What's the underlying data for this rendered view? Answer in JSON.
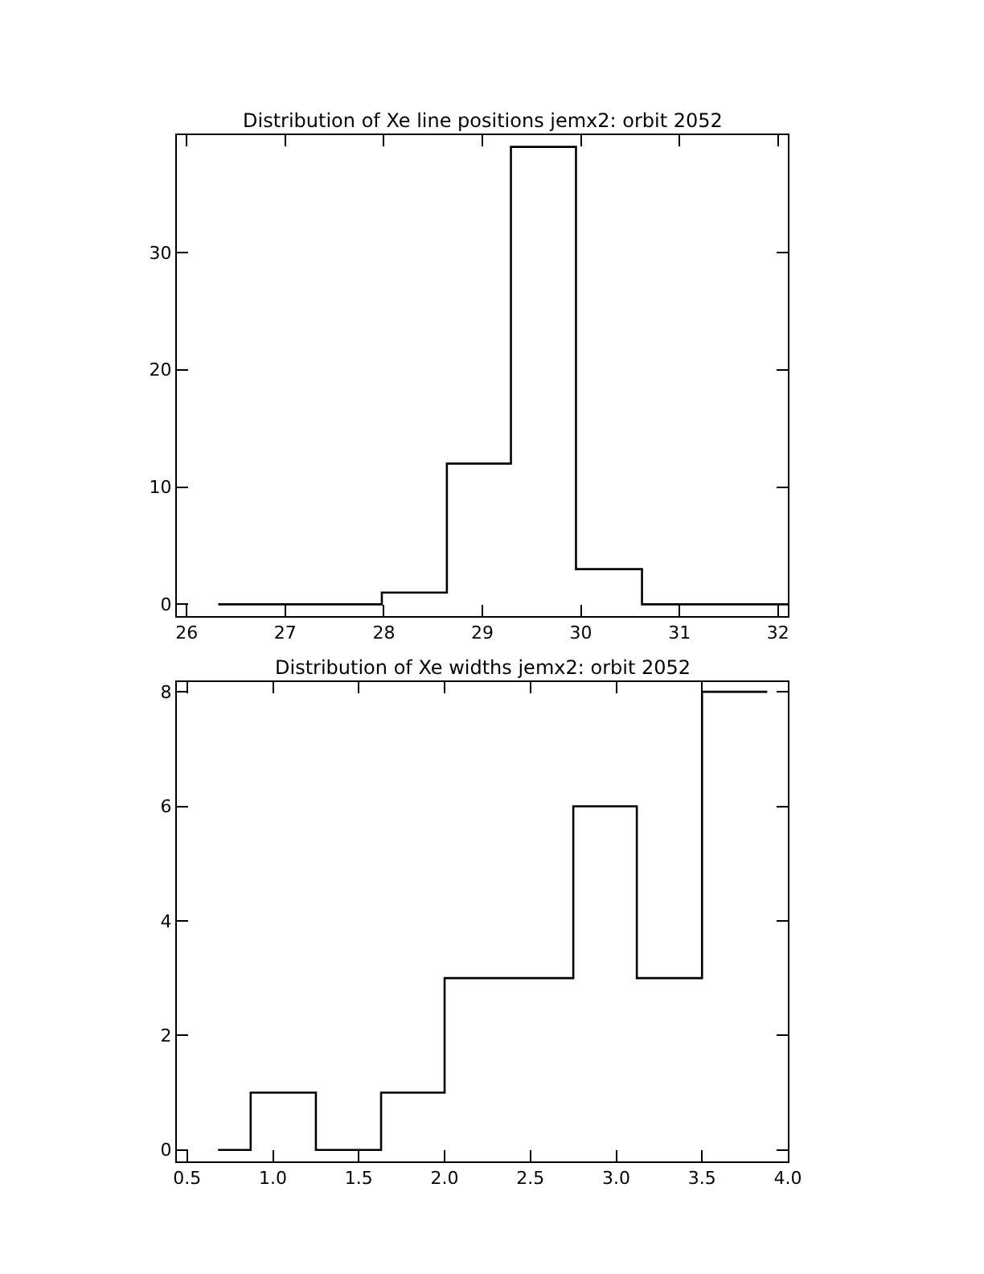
{
  "chart_data": [
    {
      "type": "histogram",
      "title": "Distribution of Xe line positions jemx2: orbit 2052",
      "bins": [
        26.32,
        27.98,
        28.64,
        29.29,
        29.95,
        30.62,
        32.1
      ],
      "values": [
        0,
        1,
        12,
        39,
        3,
        0
      ],
      "color": "#000000",
      "xlim": [
        25.9,
        32.1
      ],
      "xticks": [
        26,
        27,
        28,
        29,
        30,
        31,
        32
      ],
      "ylim": [
        -1,
        40
      ],
      "yticks": [
        0,
        10,
        20,
        30
      ]
    },
    {
      "type": "histogram",
      "title": "Distribution of Xe widths jemx2: orbit 2052",
      "bins": [
        0.68,
        0.87,
        1.25,
        1.63,
        2.0,
        2.75,
        3.12,
        3.5,
        3.88
      ],
      "values": [
        0,
        1,
        0,
        1,
        3,
        6,
        3,
        8
      ],
      "color": "#000000",
      "xlim": [
        0.44,
        4.0
      ],
      "xticks": [
        {
          "value": 0.5,
          "label": "0.5"
        },
        {
          "value": 1.0,
          "label": "1.0"
        },
        {
          "value": 1.5,
          "label": "1.5"
        },
        {
          "value": 2.0,
          "label": "2.0"
        },
        {
          "value": 2.5,
          "label": "2.5"
        },
        {
          "value": 3.0,
          "label": "3.0"
        },
        {
          "value": 3.5,
          "label": "3.5"
        },
        {
          "value": 4.0,
          "label": "4.0"
        }
      ],
      "ylim": [
        -0.2,
        8.17
      ],
      "yticks": [
        0,
        2,
        4,
        6,
        8
      ]
    }
  ]
}
